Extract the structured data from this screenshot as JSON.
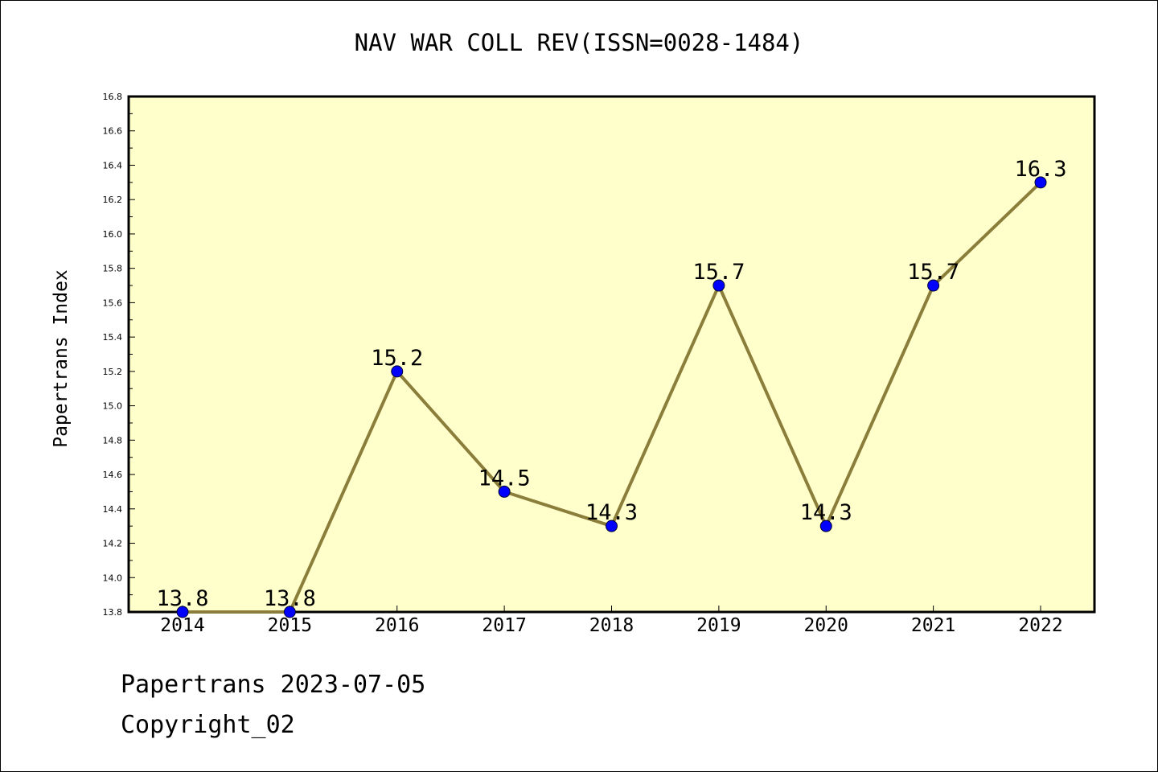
{
  "chart_data": {
    "type": "line",
    "title": "NAV WAR COLL REV(ISSN=0028-1484)",
    "xlabel": "",
    "ylabel": "Papertrans Index",
    "categories": [
      "2014",
      "2015",
      "2016",
      "2017",
      "2018",
      "2019",
      "2020",
      "2021",
      "2022"
    ],
    "values": [
      13.8,
      13.8,
      15.2,
      14.5,
      14.3,
      15.7,
      14.3,
      15.7,
      16.3
    ],
    "data_labels": [
      "13.8",
      "13.8",
      "15.2",
      "14.5",
      "14.3",
      "15.7",
      "14.3",
      "15.7",
      "16.3"
    ],
    "ylim": [
      13.8,
      16.8
    ],
    "yticks": [
      "13.8",
      "14.0",
      "14.2",
      "14.4",
      "14.6",
      "14.8",
      "15.0",
      "15.2",
      "15.4",
      "15.6",
      "15.8",
      "16.0",
      "16.2",
      "16.4",
      "16.6",
      "16.8"
    ],
    "grid": false,
    "colors": {
      "plot_background": "#ffffcc",
      "line": "#8b7d3a",
      "marker": "#0000ff"
    }
  },
  "footer": {
    "line1": "Papertrans 2023-07-05",
    "line2": "Copyright_02"
  }
}
